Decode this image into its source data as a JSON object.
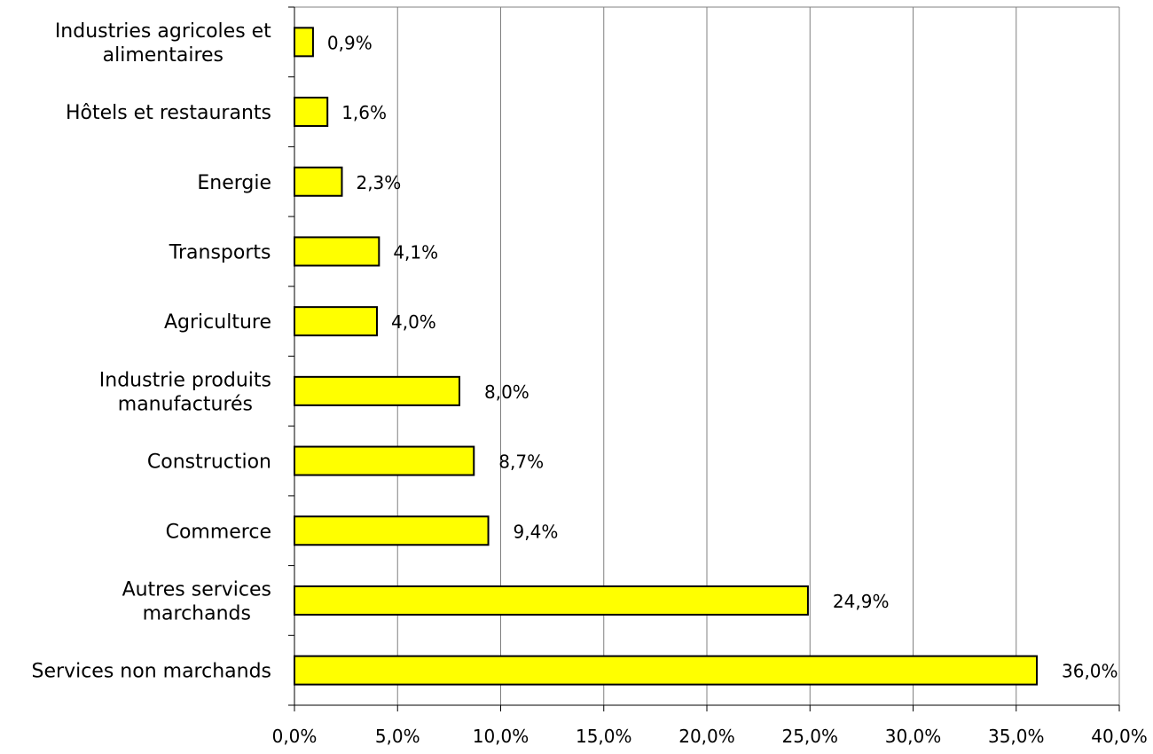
{
  "chart_data": {
    "type": "bar",
    "orientation": "horizontal",
    "categories": [
      [
        "Industries agricoles et",
        "alimentaires"
      ],
      [
        "Hôtels et restaurants"
      ],
      [
        "Energie"
      ],
      [
        "Transports"
      ],
      [
        "Agriculture"
      ],
      [
        "Industrie produits",
        "manufacturés"
      ],
      [
        "Construction"
      ],
      [
        "Commerce"
      ],
      [
        "Autres services",
        "marchands"
      ],
      [
        "Services non marchands"
      ]
    ],
    "values": [
      0.9,
      1.6,
      2.3,
      4.1,
      4.0,
      8.0,
      8.7,
      9.4,
      24.9,
      36.0
    ],
    "data_labels": [
      "0,9%",
      "1,6%",
      "2,3%",
      "4,1%",
      "4,0%",
      "8,0%",
      "8,7%",
      "9,4%",
      "24,9%",
      "36,0%"
    ],
    "x_ticks": [
      "0,0%",
      "5,0%",
      "10,0%",
      "15,0%",
      "20,0%",
      "25,0%",
      "30,0%",
      "35,0%",
      "40,0%"
    ],
    "xlim": [
      0,
      40
    ],
    "x_tick_step": 5,
    "grid": "vertical",
    "bar_color": "#ffff00",
    "bar_edge_color": "#000000",
    "grid_color": "#808080"
  }
}
